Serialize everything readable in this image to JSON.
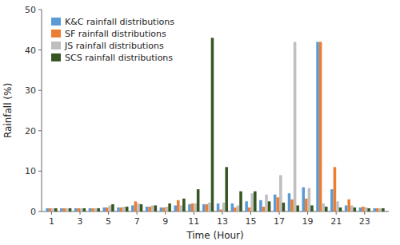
{
  "chart_data": {
    "type": "bar",
    "xlabel": "Time (Hour)",
    "ylabel": "Rainfall (%)",
    "x": [
      1,
      2,
      3,
      4,
      5,
      6,
      7,
      8,
      9,
      10,
      11,
      12,
      13,
      14,
      15,
      16,
      17,
      18,
      19,
      20,
      21,
      22,
      23,
      24
    ],
    "series": [
      {
        "name": "K&C rainfall distributions",
        "color": "#5B9BD5",
        "values": [
          0.8,
          0.8,
          0.8,
          0.8,
          1.0,
          1.0,
          1.5,
          1.2,
          1.0,
          1.5,
          1.8,
          1.8,
          2.0,
          2.0,
          2.5,
          2.8,
          4.2,
          4.5,
          6.0,
          42.0,
          5.5,
          1.5,
          1.0,
          0.8
        ]
      },
      {
        "name": "SF rainfall distributions",
        "color": "#ED7D31",
        "values": [
          0.8,
          0.8,
          0.8,
          0.8,
          1.0,
          1.0,
          2.5,
          1.2,
          1.0,
          2.8,
          2.0,
          1.8,
          0.5,
          1.0,
          1.0,
          1.2,
          3.5,
          3.0,
          3.2,
          42.0,
          11.0,
          3.0,
          1.2,
          0.8
        ]
      },
      {
        "name": "JS rainfall distributions",
        "color": "#BFBFBF",
        "values": [
          0.8,
          0.8,
          0.8,
          0.8,
          1.5,
          1.2,
          2.0,
          1.5,
          1.2,
          1.5,
          2.0,
          2.2,
          2.2,
          1.5,
          4.5,
          4.2,
          9.0,
          42.0,
          5.8,
          2.0,
          2.5,
          1.5,
          1.0,
          0.8
        ]
      },
      {
        "name": "SCS rainfall distributions",
        "color": "#375623",
        "values": [
          0.8,
          0.8,
          0.8,
          0.8,
          1.8,
          1.2,
          1.8,
          1.5,
          2.0,
          3.2,
          5.5,
          43.0,
          11.0,
          5.0,
          5.0,
          2.5,
          2.2,
          1.5,
          1.5,
          1.2,
          1.0,
          1.0,
          0.8,
          0.8
        ]
      }
    ],
    "xlim": [
      0.3,
      24.7
    ],
    "xticks": [
      1,
      3,
      5,
      7,
      9,
      11,
      13,
      15,
      17,
      19,
      21,
      23
    ],
    "ylim": [
      0,
      50
    ],
    "yticks": [
      0,
      10,
      20,
      30,
      40,
      50
    ],
    "legend": "upper left"
  }
}
